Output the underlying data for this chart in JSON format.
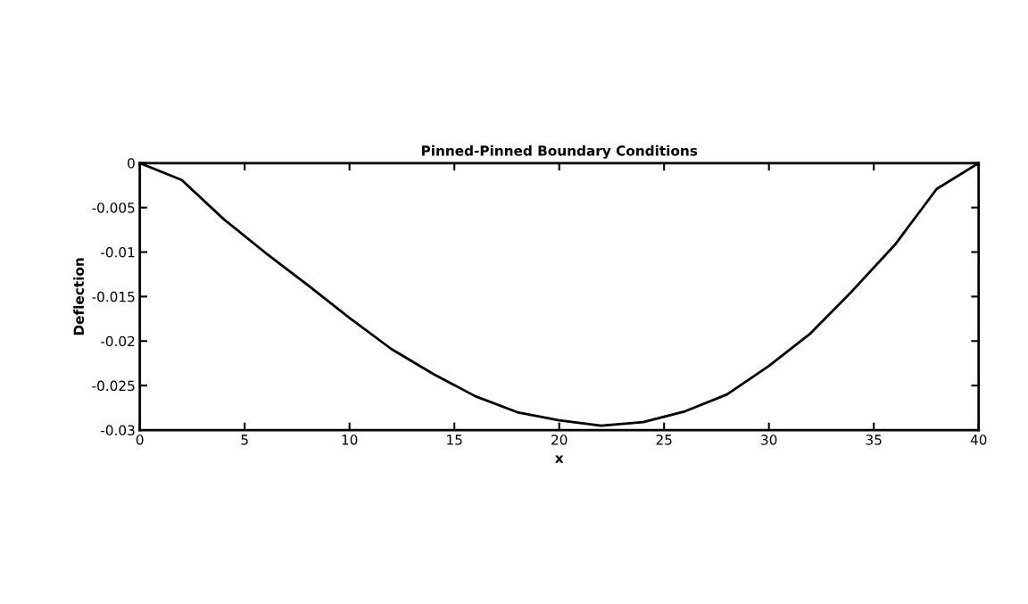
{
  "chart_data": {
    "type": "line",
    "title": "Pinned-Pinned Boundary Conditions",
    "xlabel": "x",
    "ylabel": "Deflection",
    "x": [
      0,
      2,
      4,
      6,
      8,
      10,
      12,
      14,
      16,
      18,
      20,
      22,
      24,
      26,
      28,
      30,
      32,
      34,
      36,
      38,
      40
    ],
    "series": [
      {
        "color": "#000000",
        "values": [
          0,
          -0.0019,
          -0.0063,
          -0.0101,
          -0.0137,
          -0.0174,
          -0.0209,
          -0.0237,
          -0.0262,
          -0.028,
          -0.0289,
          -0.0295,
          -0.0291,
          -0.0279,
          -0.026,
          -0.0228,
          -0.0191,
          -0.0143,
          -0.0092,
          -0.0029,
          0
        ]
      }
    ],
    "xlim": [
      0,
      40
    ],
    "xticks": [
      0,
      5,
      10,
      15,
      20,
      25,
      30,
      35,
      40
    ],
    "ylim": [
      -0.03,
      0
    ],
    "yticks": [
      -0.03,
      -0.025,
      -0.02,
      -0.015,
      -0.01,
      -0.005,
      0
    ],
    "grid": false,
    "legend": false,
    "marker": "none",
    "line_style": "solid"
  }
}
